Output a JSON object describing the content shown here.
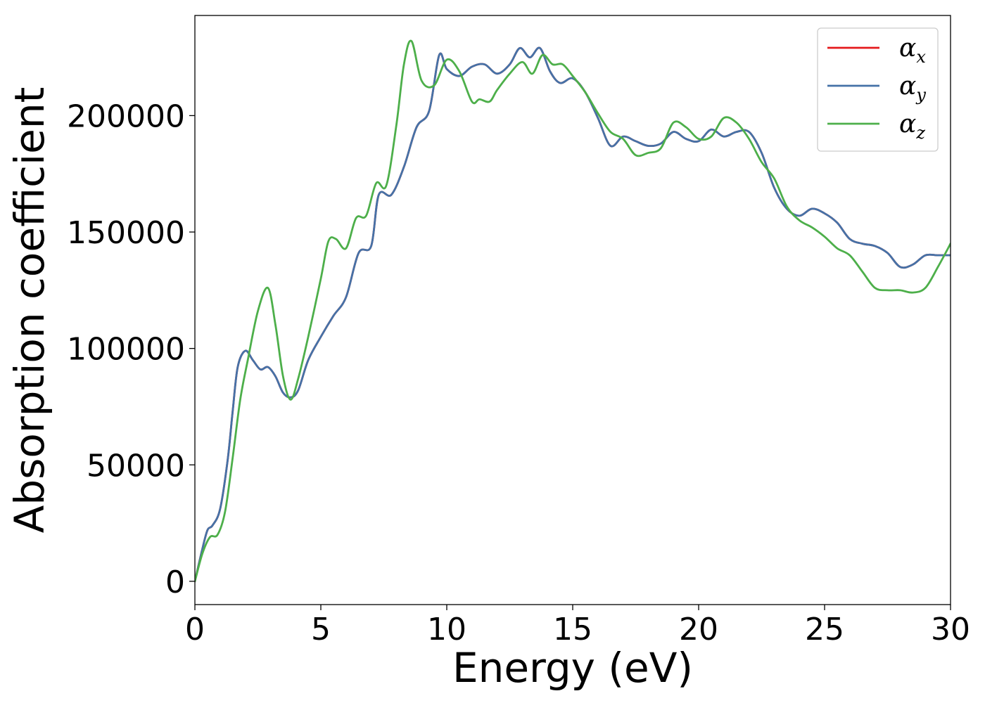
{
  "chart_data": {
    "type": "line",
    "title": "",
    "xlabel": "Energy (eV)",
    "ylabel": "Absorption coefficient",
    "xlim": [
      0,
      30
    ],
    "ylim": [
      -10000,
      243000
    ],
    "xticks": [
      0,
      5,
      10,
      15,
      20,
      25,
      30
    ],
    "xtick_labels": [
      "0",
      "5",
      "10",
      "15",
      "20",
      "25",
      "30"
    ],
    "yticks": [
      0,
      50000,
      100000,
      150000,
      200000
    ],
    "ytick_labels": [
      "0",
      "50000",
      "100000",
      "150000",
      "200000"
    ],
    "grid": false,
    "legend_position": "top-right",
    "series": [
      {
        "name": "α_x",
        "legend_symbol": "α",
        "legend_subscript": "x",
        "color": "#e41a1c",
        "x": [
          0,
          0.3,
          0.5,
          0.7,
          1.0,
          1.3,
          1.5,
          1.7,
          2.0,
          2.3,
          2.6,
          2.9,
          3.2,
          3.5,
          3.8,
          4.1,
          4.5,
          5.0,
          5.5,
          6.0,
          6.5,
          7.0,
          7.3,
          7.8,
          8.3,
          8.8,
          9.3,
          9.7,
          10.0,
          10.5,
          11.0,
          11.5,
          12.0,
          12.5,
          12.9,
          13.3,
          13.7,
          14.1,
          14.5,
          15.0,
          15.5,
          16.0,
          16.5,
          17.0,
          17.5,
          18.0,
          18.5,
          19.0,
          19.5,
          20.0,
          20.5,
          21.0,
          21.5,
          22.0,
          22.5,
          23.0,
          23.5,
          24.0,
          24.5,
          25.0,
          25.5,
          26.0,
          26.5,
          27.0,
          27.5,
          28.0,
          28.5,
          29.0,
          29.5,
          30.0
        ],
        "y": [
          0,
          14000,
          22000,
          24000,
          31000,
          52000,
          73000,
          92000,
          99000,
          95000,
          91000,
          92000,
          88000,
          81000,
          79000,
          82000,
          95000,
          105000,
          114000,
          122000,
          141000,
          144000,
          166000,
          166000,
          178000,
          195000,
          202000,
          226000,
          220000,
          217000,
          221000,
          222000,
          218000,
          222000,
          229000,
          225000,
          229000,
          219000,
          214000,
          216000,
          210000,
          199000,
          187000,
          191000,
          189000,
          187000,
          188000,
          193000,
          190000,
          189000,
          194000,
          191000,
          193000,
          193000,
          184000,
          169000,
          160000,
          157000,
          160000,
          158000,
          154000,
          147000,
          145000,
          144000,
          141000,
          135000,
          136000,
          140000,
          140000,
          140000
        ]
      },
      {
        "name": "α_y",
        "legend_symbol": "α",
        "legend_subscript": "y",
        "color": "#4572a7",
        "x": [
          0,
          0.3,
          0.5,
          0.7,
          1.0,
          1.3,
          1.5,
          1.7,
          2.0,
          2.3,
          2.6,
          2.9,
          3.2,
          3.5,
          3.8,
          4.1,
          4.5,
          5.0,
          5.5,
          6.0,
          6.5,
          7.0,
          7.3,
          7.8,
          8.3,
          8.8,
          9.3,
          9.7,
          10.0,
          10.5,
          11.0,
          11.5,
          12.0,
          12.5,
          12.9,
          13.3,
          13.7,
          14.1,
          14.5,
          15.0,
          15.5,
          16.0,
          16.5,
          17.0,
          17.5,
          18.0,
          18.5,
          19.0,
          19.5,
          20.0,
          20.5,
          21.0,
          21.5,
          22.0,
          22.5,
          23.0,
          23.5,
          24.0,
          24.5,
          25.0,
          25.5,
          26.0,
          26.5,
          27.0,
          27.5,
          28.0,
          28.5,
          29.0,
          29.5,
          30.0
        ],
        "y": [
          0,
          14000,
          22000,
          24000,
          31000,
          52000,
          73000,
          92000,
          99000,
          95000,
          91000,
          92000,
          88000,
          81000,
          79000,
          82000,
          95000,
          105000,
          114000,
          122000,
          141000,
          144000,
          166000,
          166000,
          178000,
          195000,
          202000,
          226000,
          220000,
          217000,
          221000,
          222000,
          218000,
          222000,
          229000,
          225000,
          229000,
          219000,
          214000,
          216000,
          210000,
          199000,
          187000,
          191000,
          189000,
          187000,
          188000,
          193000,
          190000,
          189000,
          194000,
          191000,
          193000,
          193000,
          184000,
          169000,
          160000,
          157000,
          160000,
          158000,
          154000,
          147000,
          145000,
          144000,
          141000,
          135000,
          136000,
          140000,
          140000,
          140000
        ]
      },
      {
        "name": "α_z",
        "legend_symbol": "α",
        "legend_subscript": "z",
        "color": "#4daf4a",
        "x": [
          0,
          0.3,
          0.6,
          0.9,
          1.2,
          1.5,
          1.8,
          2.1,
          2.5,
          2.9,
          3.2,
          3.5,
          3.8,
          4.1,
          4.5,
          5.0,
          5.3,
          5.6,
          6.0,
          6.4,
          6.8,
          7.2,
          7.6,
          8.0,
          8.3,
          8.6,
          9.0,
          9.5,
          10.0,
          10.5,
          11.0,
          11.3,
          11.7,
          12.0,
          12.5,
          13.0,
          13.4,
          13.8,
          14.2,
          14.6,
          15.0,
          15.5,
          16.0,
          16.5,
          17.0,
          17.5,
          18.0,
          18.5,
          19.0,
          19.5,
          20.0,
          20.5,
          21.0,
          21.5,
          22.0,
          22.5,
          23.0,
          23.5,
          24.0,
          24.5,
          25.0,
          25.5,
          26.0,
          26.5,
          27.0,
          27.5,
          28.0,
          28.5,
          29.0,
          29.5,
          30.0
        ],
        "y": [
          0,
          12000,
          19000,
          20000,
          30000,
          53000,
          78000,
          95000,
          116000,
          126000,
          110000,
          88000,
          78000,
          87000,
          105000,
          130000,
          146000,
          147000,
          143000,
          156000,
          157000,
          171000,
          170000,
          196000,
          222000,
          232000,
          215000,
          213000,
          224000,
          219000,
          206000,
          207000,
          206000,
          211000,
          218000,
          223000,
          218000,
          226000,
          222000,
          222000,
          217000,
          210000,
          201000,
          193000,
          190000,
          183000,
          184000,
          186000,
          197000,
          195000,
          190000,
          191000,
          199000,
          197000,
          190000,
          180000,
          173000,
          161000,
          155000,
          152000,
          148000,
          143000,
          140000,
          133000,
          126000,
          125000,
          125000,
          124000,
          126000,
          135000,
          145000
        ]
      }
    ]
  }
}
